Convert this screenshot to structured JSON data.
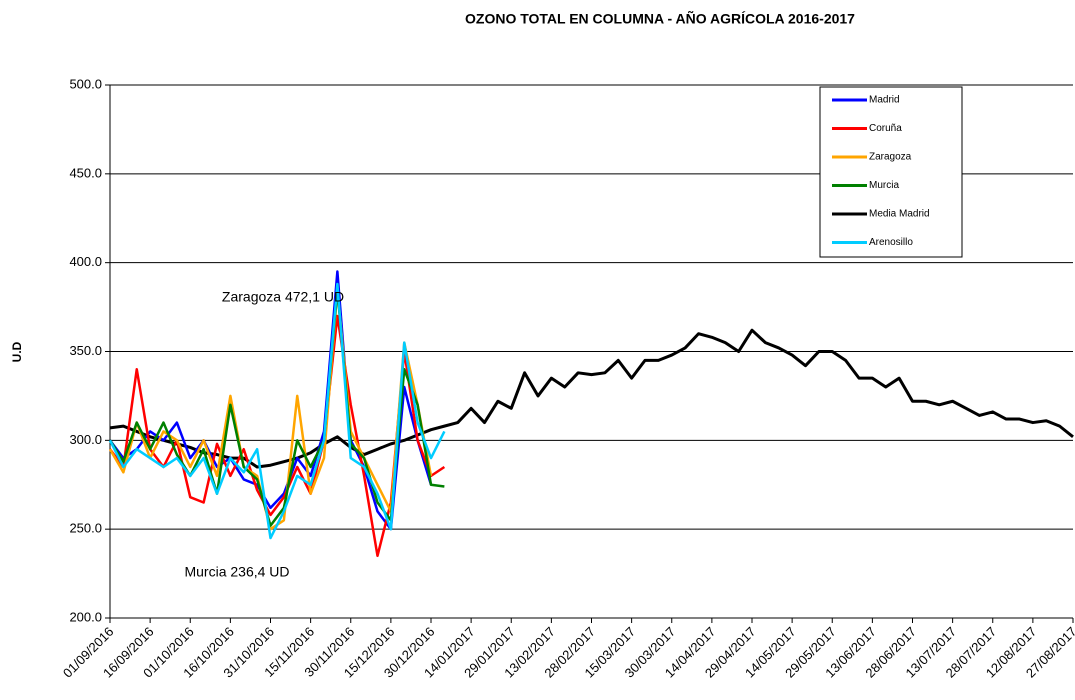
{
  "chart_data": {
    "type": "line",
    "title": "OZONO TOTAL EN COLUMNA  -  AÑO AGRÍCOLA  2016-2017",
    "y_label": "U.D",
    "annotations": [
      "Zaragoza 472,1 UD",
      "Murcia 236,4 UD"
    ],
    "x": [
      "01/09/2016",
      "06/09/2016",
      "11/09/2016",
      "16/09/2016",
      "21/09/2016",
      "26/09/2016",
      "01/10/2016",
      "06/10/2016",
      "11/10/2016",
      "16/10/2016",
      "21/10/2016",
      "26/10/2016",
      "31/10/2016",
      "05/11/2016",
      "10/11/2016",
      "15/11/2016",
      "20/11/2016",
      "25/11/2016",
      "30/11/2016",
      "05/12/2016",
      "10/12/2016",
      "15/12/2016",
      "20/12/2016",
      "25/12/2016",
      "30/12/2016",
      "04/01/2017",
      "09/01/2017",
      "14/01/2017",
      "19/01/2017",
      "24/01/2017",
      "29/01/2017",
      "03/02/2017",
      "08/02/2017",
      "13/02/2017",
      "18/02/2017",
      "23/02/2017",
      "28/02/2017",
      "05/03/2017",
      "10/03/2017",
      "15/03/2017",
      "20/03/2017",
      "25/03/2017",
      "30/03/2017",
      "04/04/2017",
      "09/04/2017",
      "14/04/2017",
      "19/04/2017",
      "24/04/2017",
      "29/04/2017",
      "04/05/2017",
      "09/05/2017",
      "14/05/2017",
      "19/05/2017",
      "24/05/2017",
      "29/05/2017",
      "03/06/2017",
      "08/06/2017",
      "13/06/2017",
      "18/06/2017",
      "23/06/2017",
      "28/06/2017",
      "03/07/2017",
      "08/07/2017",
      "13/07/2017",
      "18/07/2017",
      "23/07/2017",
      "28/07/2017",
      "02/08/2017",
      "07/08/2017",
      "12/08/2017",
      "17/08/2017",
      "22/08/2017",
      "27/08/2017"
    ],
    "xlim": [
      "01/09/2016",
      "27/08/2017"
    ],
    "xticks": [
      "01/09/2016",
      "16/09/2016",
      "01/10/2016",
      "16/10/2016",
      "31/10/2016",
      "15/11/2016",
      "30/11/2016",
      "15/12/2016",
      "30/12/2016",
      "14/01/2017",
      "29/01/2017",
      "13/02/2017",
      "28/02/2017",
      "15/03/2017",
      "30/03/2017",
      "14/04/2017",
      "29/04/2017",
      "14/05/2017",
      "29/05/2017",
      "13/06/2017",
      "28/06/2017",
      "13/07/2017",
      "28/07/2017",
      "12/08/2017",
      "27/08/2017"
    ],
    "ylim": [
      200,
      500
    ],
    "yticks": [
      {
        "value": 200,
        "label": "200.0"
      },
      {
        "value": 250,
        "label": "250.0"
      },
      {
        "value": 300,
        "label": "300.0"
      },
      {
        "value": 350,
        "label": "350.0"
      },
      {
        "value": 400,
        "label": "400.0"
      },
      {
        "value": 450,
        "label": "450.0"
      },
      {
        "value": 500,
        "label": "500.0"
      }
    ],
    "grid": true,
    "series": [
      {
        "name": "Madrid",
        "color": "#0000ff",
        "values": [
          300,
          290,
          295,
          305,
          300,
          310,
          290,
          300,
          285,
          290,
          278,
          275,
          262,
          270,
          290,
          280,
          305,
          395,
          300,
          285,
          260,
          250,
          330,
          300,
          275,
          null,
          null,
          null,
          null,
          null,
          null,
          null,
          null,
          null,
          null,
          null,
          null,
          null,
          null,
          null,
          null,
          null,
          null,
          null,
          null,
          null,
          null,
          null,
          null,
          null,
          null,
          null,
          null,
          null,
          null,
          null,
          null,
          null,
          null,
          null,
          null,
          null,
          null,
          null,
          null,
          null,
          null,
          null,
          null,
          null,
          null,
          null,
          null
        ]
      },
      {
        "name": "Coruña",
        "color": "#ff0000",
        "values": [
          295,
          285,
          340,
          295,
          285,
          300,
          268,
          265,
          298,
          280,
          295,
          272,
          258,
          268,
          285,
          270,
          300,
          370,
          320,
          280,
          235,
          265,
          350,
          300,
          280,
          285,
          null,
          null,
          null,
          null,
          null,
          null,
          null,
          null,
          null,
          null,
          null,
          null,
          null,
          null,
          null,
          null,
          null,
          null,
          null,
          null,
          null,
          null,
          null,
          null,
          null,
          null,
          null,
          null,
          null,
          null,
          null,
          null,
          null,
          null,
          null,
          null,
          null,
          null,
          null,
          null,
          null,
          null,
          null,
          null,
          null,
          null,
          null
        ]
      },
      {
        "name": "Zaragoza",
        "color": "#ffa500",
        "values": [
          295,
          282,
          310,
          290,
          305,
          300,
          285,
          300,
          280,
          325,
          285,
          280,
          250,
          255,
          325,
          270,
          290,
          385,
          305,
          290,
          275,
          260,
          355,
          320,
          280,
          null,
          null,
          null,
          null,
          null,
          null,
          null,
          null,
          null,
          null,
          null,
          null,
          null,
          null,
          null,
          null,
          null,
          null,
          null,
          null,
          null,
          null,
          null,
          null,
          null,
          null,
          null,
          null,
          null,
          null,
          null,
          null,
          null,
          null,
          null,
          null,
          null,
          null,
          null,
          null,
          null,
          null,
          null,
          null,
          null,
          null,
          null,
          null
        ]
      },
      {
        "name": "Murcia",
        "color": "#008000",
        "values": [
          300,
          288,
          310,
          295,
          310,
          292,
          280,
          295,
          270,
          320,
          285,
          278,
          252,
          262,
          300,
          285,
          300,
          385,
          298,
          290,
          265,
          255,
          340,
          320,
          275,
          274,
          null,
          null,
          null,
          null,
          null,
          null,
          null,
          null,
          null,
          null,
          null,
          null,
          null,
          null,
          null,
          null,
          null,
          null,
          null,
          null,
          null,
          null,
          null,
          null,
          null,
          null,
          null,
          null,
          null,
          null,
          null,
          null,
          null,
          null,
          null,
          null,
          null,
          null,
          null,
          null,
          null,
          null,
          null,
          null,
          null,
          null,
          null
        ]
      },
      {
        "name": "Media Madrid",
        "color": "#000000",
        "values": [
          307,
          308,
          305,
          302,
          300,
          298,
          296,
          293,
          292,
          290,
          290,
          285,
          286,
          288,
          290,
          293,
          298,
          302,
          296,
          292,
          295,
          298,
          300,
          303,
          306,
          308,
          310,
          318,
          310,
          322,
          318,
          338,
          325,
          335,
          330,
          338,
          337,
          338,
          345,
          335,
          345,
          345,
          348,
          352,
          360,
          358,
          355,
          350,
          362,
          355,
          352,
          348,
          342,
          350,
          350,
          345,
          335,
          335,
          330,
          335,
          322,
          322,
          320,
          322,
          318,
          314,
          316,
          312,
          312,
          310,
          311,
          308,
          302
        ]
      },
      {
        "name": "Arenosillo",
        "color": "#00ccff",
        "values": [
          300,
          285,
          295,
          290,
          285,
          290,
          280,
          290,
          270,
          290,
          282,
          295,
          245,
          260,
          280,
          275,
          300,
          388,
          290,
          285,
          270,
          250,
          355,
          310,
          290,
          305,
          null,
          null,
          null,
          null,
          null,
          null,
          null,
          null,
          null,
          null,
          null,
          null,
          null,
          null,
          null,
          null,
          null,
          null,
          null,
          null,
          null,
          null,
          null,
          null,
          null,
          null,
          null,
          null,
          null,
          null,
          null,
          null,
          null,
          null,
          null,
          null,
          null,
          null,
          null,
          null,
          null,
          null,
          null,
          null,
          null,
          null,
          null
        ]
      }
    ]
  }
}
